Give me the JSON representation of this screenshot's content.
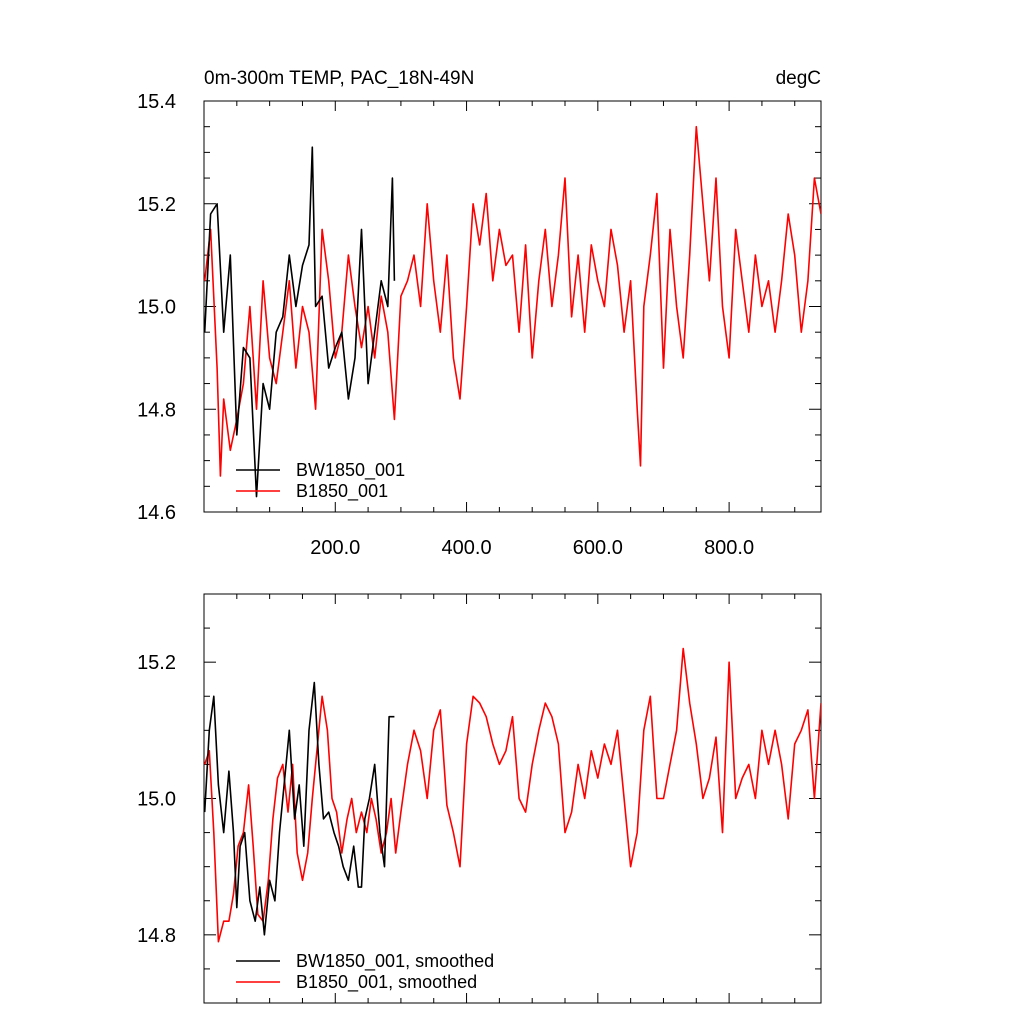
{
  "chart_data": [
    {
      "type": "line",
      "title_left": "0m-300m TEMP, PAC_18N-49N",
      "title_right": "degC",
      "xlim": [
        0,
        940
      ],
      "ylim": [
        14.6,
        15.4
      ],
      "xticks": [
        200,
        400,
        600,
        800
      ],
      "xtick_labels": [
        "200.0",
        "400.0",
        "600.0",
        "800.0"
      ],
      "yticks": [
        14.6,
        14.8,
        15.0,
        15.2,
        15.4
      ],
      "ytick_labels": [
        "14.6",
        "14.8",
        "15.0",
        "15.2",
        "15.4"
      ],
      "grid": false,
      "legend_position": "bottom-left",
      "series": [
        {
          "name": "BW1850_001",
          "color": "#000000",
          "x": [
            1,
            10,
            20,
            30,
            40,
            50,
            60,
            70,
            80,
            90,
            100,
            110,
            120,
            130,
            140,
            150,
            160,
            165,
            170,
            180,
            190,
            200,
            210,
            220,
            230,
            240,
            250,
            260,
            270,
            280,
            287,
            290
          ],
          "values": [
            14.95,
            15.18,
            15.2,
            14.95,
            15.1,
            14.75,
            14.92,
            14.9,
            14.63,
            14.85,
            14.8,
            14.95,
            14.98,
            15.1,
            15.0,
            15.08,
            15.12,
            15.31,
            15.0,
            15.02,
            14.88,
            14.92,
            14.95,
            14.82,
            14.9,
            15.15,
            14.85,
            14.95,
            15.05,
            15.0,
            15.25,
            15.05
          ]
        },
        {
          "name": "B1850_001",
          "color": "#ff0000",
          "x": [
            1,
            10,
            20,
            25,
            30,
            40,
            50,
            60,
            70,
            80,
            90,
            100,
            110,
            120,
            130,
            140,
            150,
            160,
            170,
            180,
            190,
            200,
            210,
            220,
            230,
            240,
            250,
            260,
            270,
            280,
            290,
            300,
            310,
            320,
            330,
            340,
            350,
            360,
            370,
            380,
            390,
            400,
            410,
            420,
            430,
            440,
            450,
            460,
            470,
            480,
            490,
            500,
            510,
            520,
            530,
            540,
            550,
            560,
            570,
            580,
            590,
            600,
            610,
            620,
            630,
            640,
            650,
            660,
            665,
            670,
            680,
            690,
            700,
            710,
            720,
            730,
            740,
            750,
            760,
            770,
            780,
            790,
            800,
            810,
            820,
            830,
            840,
            850,
            860,
            870,
            880,
            890,
            900,
            910,
            920,
            930,
            940
          ],
          "values": [
            15.05,
            15.15,
            14.88,
            14.67,
            14.82,
            14.72,
            14.78,
            14.85,
            15.0,
            14.8,
            15.05,
            14.9,
            14.85,
            14.95,
            15.05,
            14.88,
            15.0,
            14.95,
            14.8,
            15.15,
            15.05,
            14.9,
            14.95,
            15.1,
            15.0,
            14.92,
            15.0,
            14.9,
            15.02,
            14.95,
            14.78,
            15.02,
            15.05,
            15.1,
            15.0,
            15.2,
            15.05,
            14.95,
            15.1,
            14.9,
            14.82,
            15.0,
            15.2,
            15.12,
            15.22,
            15.05,
            15.15,
            15.08,
            15.1,
            14.95,
            15.12,
            14.9,
            15.05,
            15.15,
            15.0,
            15.1,
            15.25,
            14.98,
            15.1,
            14.95,
            15.12,
            15.05,
            15.0,
            15.15,
            15.08,
            14.95,
            15.05,
            14.8,
            14.69,
            15.0,
            15.1,
            15.22,
            14.88,
            15.15,
            15.0,
            14.9,
            15.1,
            15.35,
            15.2,
            15.05,
            15.25,
            15.0,
            14.9,
            15.15,
            15.05,
            14.95,
            15.1,
            15.0,
            15.05,
            14.95,
            15.05,
            15.18,
            15.1,
            14.95,
            15.05,
            15.25,
            15.18
          ]
        }
      ]
    },
    {
      "type": "line",
      "xlim": [
        0,
        940
      ],
      "ylim": [
        14.7,
        15.3
      ],
      "xticks": [
        200,
        400,
        600,
        800
      ],
      "yticks": [
        14.8,
        15.0,
        15.2
      ],
      "ytick_labels": [
        "14.8",
        "15.0",
        "15.2"
      ],
      "grid": false,
      "legend_position": "bottom-left",
      "series": [
        {
          "name": "BW1850_001, smoothed",
          "color": "#000000",
          "x": [
            1,
            8,
            15,
            22,
            30,
            38,
            45,
            50,
            55,
            62,
            70,
            78,
            85,
            92,
            100,
            108,
            115,
            122,
            130,
            138,
            145,
            152,
            160,
            168,
            175,
            182,
            190,
            198,
            205,
            212,
            220,
            228,
            235,
            240,
            245,
            252,
            260,
            268,
            275,
            282,
            290
          ],
          "values": [
            14.98,
            15.1,
            15.15,
            15.02,
            14.95,
            15.04,
            14.95,
            14.84,
            14.93,
            14.95,
            14.85,
            14.82,
            14.87,
            14.8,
            14.88,
            14.85,
            14.95,
            15.02,
            15.1,
            14.97,
            15.02,
            14.93,
            15.1,
            15.17,
            15.05,
            14.97,
            14.98,
            14.95,
            14.93,
            14.9,
            14.88,
            14.93,
            14.87,
            14.87,
            14.97,
            15.0,
            15.05,
            14.95,
            14.9,
            15.12,
            15.12
          ]
        },
        {
          "name": "B1850_001, smoothed",
          "color": "#ff0000",
          "x": [
            1,
            8,
            15,
            22,
            30,
            38,
            45,
            52,
            60,
            68,
            75,
            82,
            90,
            98,
            105,
            112,
            120,
            128,
            135,
            142,
            150,
            158,
            165,
            172,
            180,
            188,
            195,
            202,
            210,
            218,
            225,
            232,
            240,
            248,
            255,
            262,
            270,
            278,
            285,
            292,
            300,
            310,
            320,
            330,
            340,
            350,
            360,
            370,
            380,
            390,
            400,
            410,
            420,
            430,
            440,
            450,
            460,
            470,
            480,
            490,
            500,
            510,
            520,
            530,
            540,
            550,
            560,
            570,
            580,
            590,
            600,
            610,
            620,
            630,
            640,
            650,
            660,
            670,
            680,
            690,
            700,
            710,
            720,
            730,
            740,
            750,
            760,
            770,
            780,
            790,
            800,
            810,
            820,
            830,
            840,
            850,
            860,
            870,
            880,
            890,
            900,
            910,
            920,
            930,
            940
          ],
          "values": [
            15.05,
            15.07,
            14.95,
            14.79,
            14.82,
            14.82,
            14.86,
            14.93,
            14.95,
            15.02,
            14.93,
            14.83,
            14.82,
            14.88,
            14.97,
            15.03,
            15.05,
            14.98,
            15.05,
            14.92,
            14.88,
            14.92,
            15.0,
            15.07,
            15.15,
            15.1,
            15.0,
            14.98,
            14.92,
            14.97,
            15.0,
            14.95,
            14.98,
            14.95,
            15.0,
            14.97,
            14.92,
            14.95,
            15.0,
            14.92,
            14.98,
            15.05,
            15.1,
            15.07,
            15.0,
            15.1,
            15.13,
            14.99,
            14.95,
            14.9,
            15.08,
            15.15,
            15.14,
            15.12,
            15.08,
            15.05,
            15.07,
            15.12,
            15.0,
            14.98,
            15.05,
            15.1,
            15.14,
            15.12,
            15.08,
            14.95,
            14.98,
            15.05,
            15.0,
            15.07,
            15.03,
            15.08,
            15.05,
            15.1,
            15.0,
            14.9,
            14.95,
            15.1,
            15.15,
            15.0,
            15.0,
            15.05,
            15.1,
            15.22,
            15.14,
            15.08,
            15.0,
            15.03,
            15.09,
            14.95,
            15.2,
            15.0,
            15.03,
            15.05,
            15.0,
            15.1,
            15.05,
            15.1,
            15.05,
            14.97,
            15.08,
            15.1,
            15.13,
            15.0,
            15.14
          ]
        }
      ]
    }
  ]
}
